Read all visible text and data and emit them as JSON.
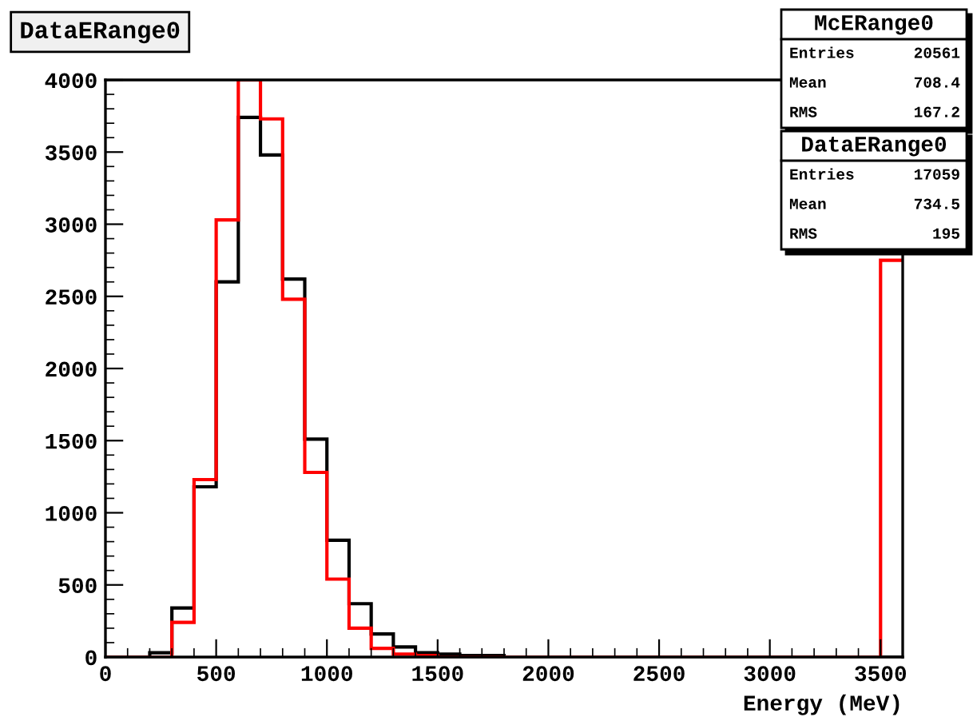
{
  "chart_data": {
    "type": "histogram",
    "title": "DataERange0",
    "xlabel": "Energy (MeV)",
    "bins": [
      0,
      100,
      200,
      300,
      400,
      500,
      600,
      700,
      800,
      900,
      1000,
      1100,
      1200,
      1300,
      1400,
      1500,
      1600,
      1700,
      1800,
      1900,
      2000,
      2100,
      2200,
      2300,
      2400,
      2500,
      2600,
      2700,
      2800,
      2900,
      3000,
      3100,
      3200,
      3300,
      3400,
      3500,
      3600
    ],
    "series": [
      {
        "color": "#000000",
        "values": [
          0,
          0,
          30,
          340,
          1180,
          2600,
          3740,
          3480,
          2620,
          1510,
          810,
          370,
          160,
          70,
          30,
          20,
          10,
          10,
          0,
          0,
          0,
          0,
          0,
          0,
          0,
          0,
          0,
          0,
          0,
          0,
          0,
          0,
          0,
          0,
          0,
          0
        ]
      },
      {
        "color": "#ff0000",
        "values": [
          0,
          0,
          0,
          240,
          1230,
          3030,
          4000,
          3730,
          2480,
          1280,
          540,
          200,
          60,
          20,
          10,
          0,
          0,
          0,
          0,
          0,
          0,
          0,
          0,
          0,
          0,
          0,
          0,
          0,
          0,
          0,
          0,
          0,
          0,
          0,
          0,
          2750
        ]
      }
    ],
    "xlim": [
      0,
      3600
    ],
    "xticks": [
      0,
      500,
      1000,
      1500,
      2000,
      2500,
      3000,
      3500
    ],
    "ylim": [
      0,
      4000
    ],
    "yticks": [
      0,
      500,
      1000,
      1500,
      2000,
      2500,
      3000,
      3500,
      4000
    ],
    "grid": false,
    "legend": false,
    "annotations": [
      "McERange0",
      "Entries",
      "20561",
      "Mean",
      "708.4",
      "RMS",
      "167.2",
      "DataERange0",
      "Entries",
      "17059",
      "Mean",
      "734.5",
      "RMS",
      "195"
    ]
  }
}
